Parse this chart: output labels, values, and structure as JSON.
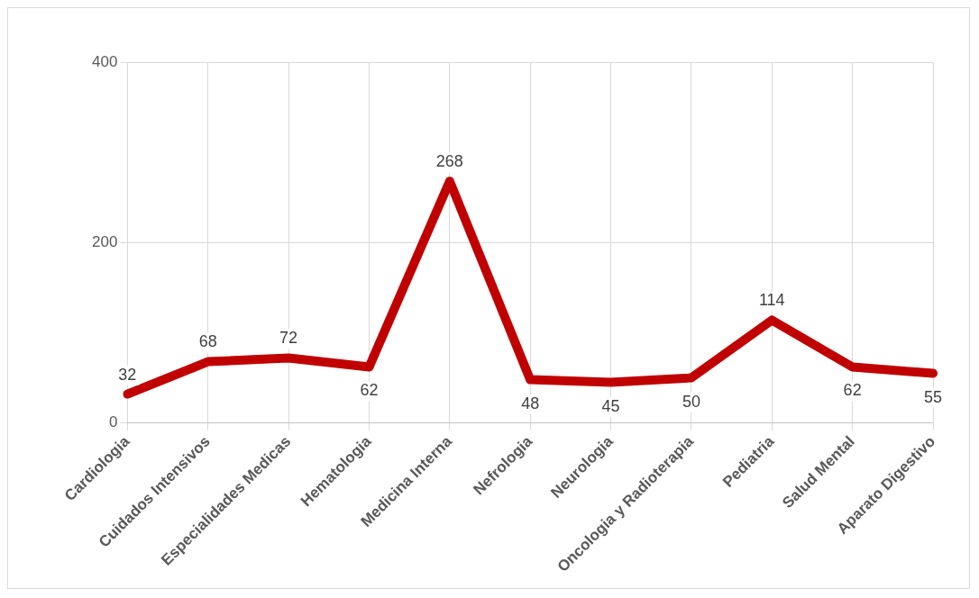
{
  "chart_data": {
    "type": "line",
    "categories": [
      "Cardiologia",
      "Cuidados Intensivos",
      "Especialidades Medicas",
      "Hematologia",
      "Medicina Interna",
      "Nefrologia",
      "Neurologia",
      "Oncologia y Radioterapia",
      "Pediatria",
      "Salud Mental",
      "Aparato Digestivo"
    ],
    "values": [
      32,
      68,
      72,
      62,
      268,
      48,
      45,
      50,
      114,
      62,
      55
    ],
    "color": "#c00000",
    "ylim": [
      0,
      400
    ],
    "yticks": [
      0,
      200,
      400
    ],
    "grid": true,
    "data_labels": true,
    "marker": "none"
  }
}
